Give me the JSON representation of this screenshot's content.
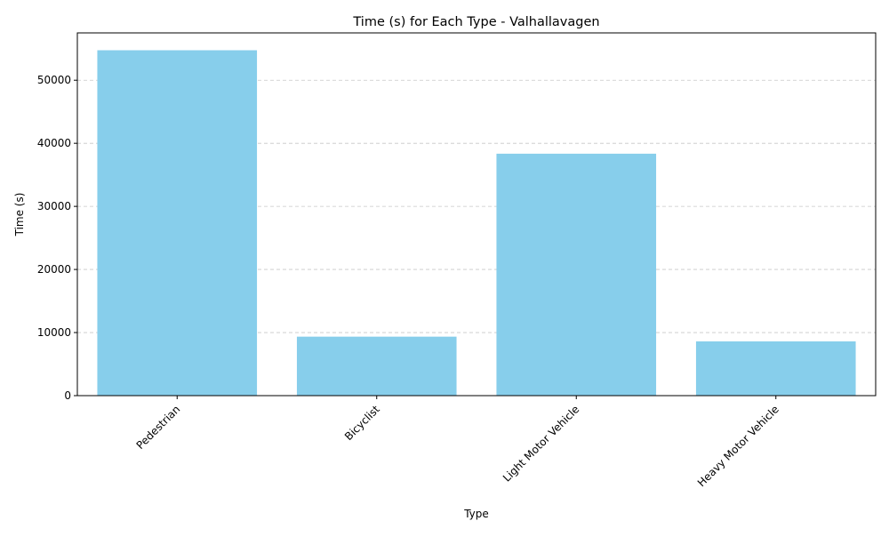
{
  "chart_data": {
    "type": "bar",
    "title": "Time (s) for Each Type - Valhallavagen",
    "xlabel": "Type",
    "ylabel": "Time (s)",
    "categories": [
      "Pedestrian",
      "Bicyclist",
      "Light Motor Vehicle",
      "Heavy Motor Vehicle"
    ],
    "values": [
      54750,
      9350,
      38350,
      8600
    ],
    "ylim": [
      0,
      57500
    ],
    "yticks": [
      0,
      10000,
      20000,
      30000,
      40000,
      50000
    ],
    "grid": "y-dashed",
    "bar_color": "#87CEEB",
    "grid_color": "#c8c8c8"
  }
}
